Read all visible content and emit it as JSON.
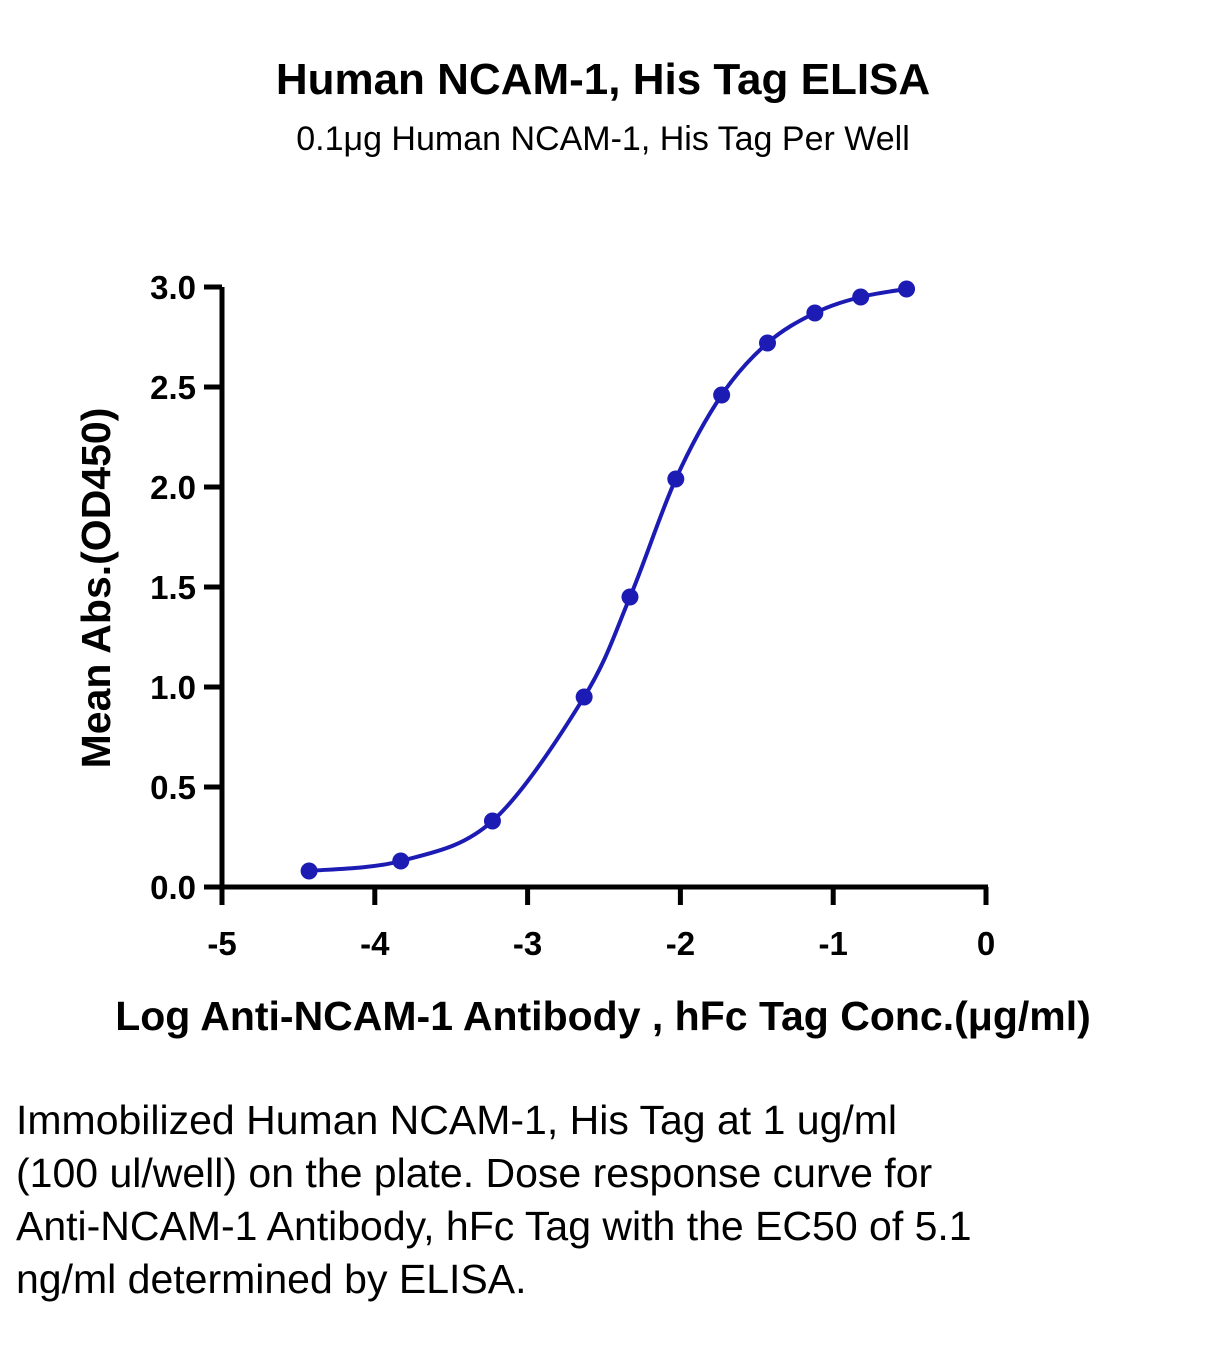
{
  "chart_data": {
    "type": "scatter",
    "title": "Human NCAM-1, His Tag ELISA",
    "subtitle": "0.1μg Human NCAM-1, His Tag Per Well",
    "xlabel": "Log Anti-NCAM-1 Antibody , hFc Tag Conc.(μg/ml)",
    "ylabel": "Mean Abs.(OD450)",
    "xlim": [
      -5,
      0
    ],
    "ylim": [
      0,
      3.0
    ],
    "x_ticks": [
      "-5",
      "-4",
      "-3",
      "-2",
      "-1",
      "0"
    ],
    "y_ticks": [
      "0.0",
      "0.5",
      "1.0",
      "1.5",
      "2.0",
      "2.5",
      "3.0"
    ],
    "grid": false,
    "fit": "4-parameter logistic curve",
    "series": [
      {
        "color": "#1c1cb4",
        "x": [
          -4.43,
          -3.83,
          -3.23,
          -2.63,
          -2.33,
          -2.03,
          -1.73,
          -1.43,
          -1.12,
          -0.82,
          -0.52
        ],
        "y": [
          0.08,
          0.13,
          0.33,
          0.95,
          1.45,
          2.04,
          2.46,
          2.72,
          2.87,
          2.95,
          2.99
        ]
      }
    ]
  },
  "caption": "Immobilized Human NCAM-1, His Tag at 1 ug/ml (100 ul/well) on the plate. Dose response curve for Anti-NCAM-1 Antibody, hFc Tag with the EC50 of 5.1 ng/ml determined by ELISA."
}
